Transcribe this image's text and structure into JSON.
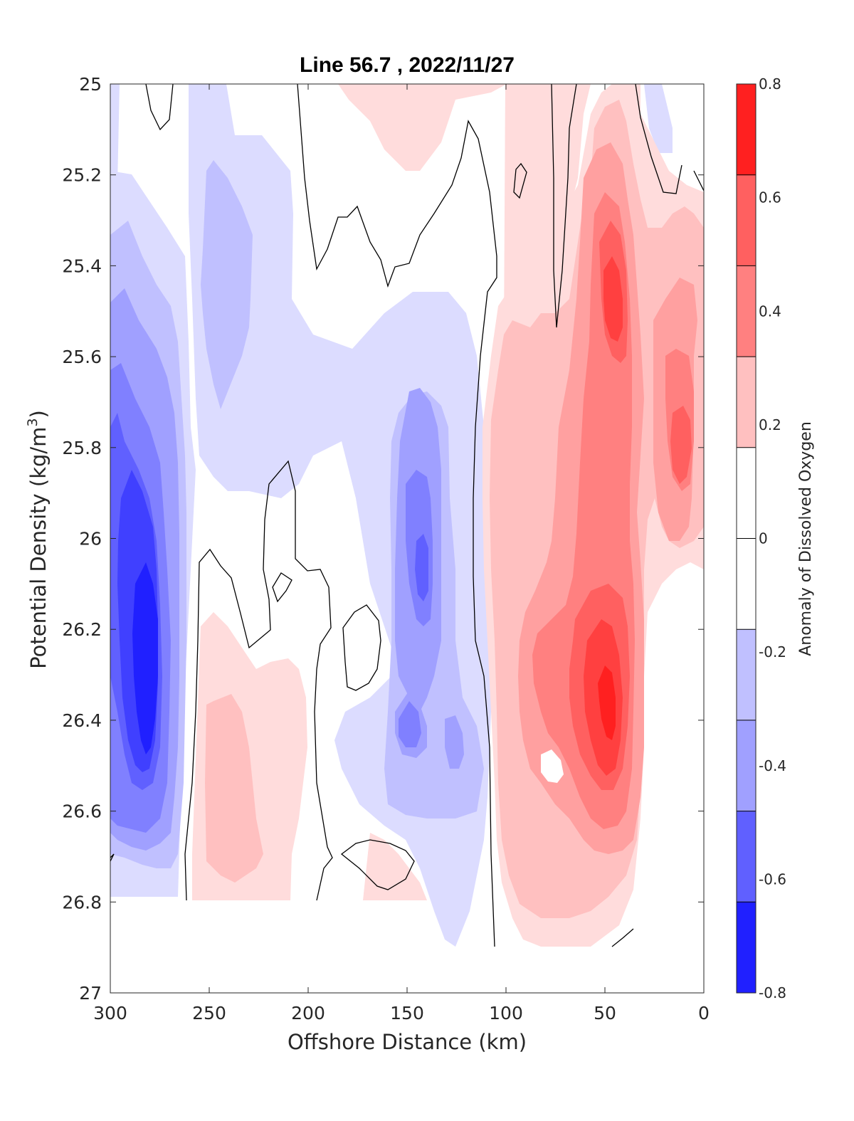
{
  "chart_data": {
    "type": "contourf",
    "title": "Line 56.7 , 2022/11/27",
    "xlabel": "Offshore Distance (km)",
    "ylabel_main": "Potential Density (kg/m",
    "ylabel_sup": "3",
    "ylabel_close": ")",
    "xlim": [
      300,
      0
    ],
    "ylim": [
      25,
      27
    ],
    "x_reversed": true,
    "y_reversed": true,
    "x_ticks": [
      300,
      250,
      200,
      150,
      100,
      50,
      0
    ],
    "y_ticks": [
      "25",
      "25.2",
      "25.4",
      "25.6",
      "25.8",
      "26",
      "26.2",
      "26.4",
      "26.6",
      "26.8",
      "27"
    ],
    "colorbar": {
      "label": "Anomaly of Dissolved Oxygen",
      "range": [
        -0.8,
        0.8
      ],
      "tick_labels": [
        "0.8",
        "0.6",
        "0.4",
        "0.2",
        "0",
        "-0.2",
        "-0.4",
        "-0.6",
        "-0.8"
      ],
      "levels": [
        -0.8,
        -0.7,
        -0.6,
        -0.5,
        -0.4,
        -0.3,
        -0.2,
        -0.1,
        0.1,
        0.2,
        0.3,
        0.4,
        0.5,
        0.6,
        0.7,
        0.8
      ],
      "colors": [
        "#0000ff",
        "#2020ff",
        "#4040ff",
        "#6060ff",
        "#8080ff",
        "#a0a0ff",
        "#c0c0ff",
        "#dcdcff",
        "#ffffff",
        "#ffdcdc",
        "#ffc0c0",
        "#ffa0a0",
        "#ff8080",
        "#ff6060",
        "#ff4040",
        "#ff2020",
        "#ff0000"
      ]
    },
    "features": [
      {
        "kind": "negative anomaly core",
        "x_range": [
          300,
          262
        ],
        "sigma_range": [
          25.25,
          26.75
        ],
        "peak": -0.65,
        "peak_at": [
          280,
          26.25
        ]
      },
      {
        "kind": "negative anomaly",
        "x_range": [
          270,
          215
        ],
        "sigma_range": [
          25.0,
          25.95
        ],
        "peak": -0.3,
        "peak_at": [
          245,
          25.45
        ]
      },
      {
        "kind": "negative anomaly",
        "x_range": [
          165,
          110
        ],
        "sigma_range": [
          25.45,
          26.9
        ],
        "peak": -0.4,
        "peak_at": [
          145,
          26.1
        ]
      },
      {
        "kind": "positive anomaly",
        "x_range": [
          255,
          195
        ],
        "sigma_range": [
          26.05,
          26.8
        ],
        "peak": 0.3,
        "peak_at": [
          240,
          26.6
        ]
      },
      {
        "kind": "positive anomaly",
        "x_range": [
          185,
          130
        ],
        "sigma_range": [
          25.0,
          25.2
        ],
        "peak": 0.2,
        "peak_at": [
          150,
          25.0
        ]
      },
      {
        "kind": "positive anomaly core",
        "x_range": [
          112,
          25
        ],
        "sigma_range": [
          25.0,
          26.9
        ],
        "peak": 0.75,
        "peak_at": [
          47,
          26.35
        ]
      },
      {
        "kind": "positive anomaly",
        "x_range": [
          35,
          0
        ],
        "sigma_range": [
          25.25,
          26.2
        ],
        "peak": 0.5,
        "peak_at": [
          10,
          25.7
        ]
      }
    ],
    "data_extent": "defined to sigma 26.8 for x 300-258 km, to about 26.9 elsewhere"
  }
}
